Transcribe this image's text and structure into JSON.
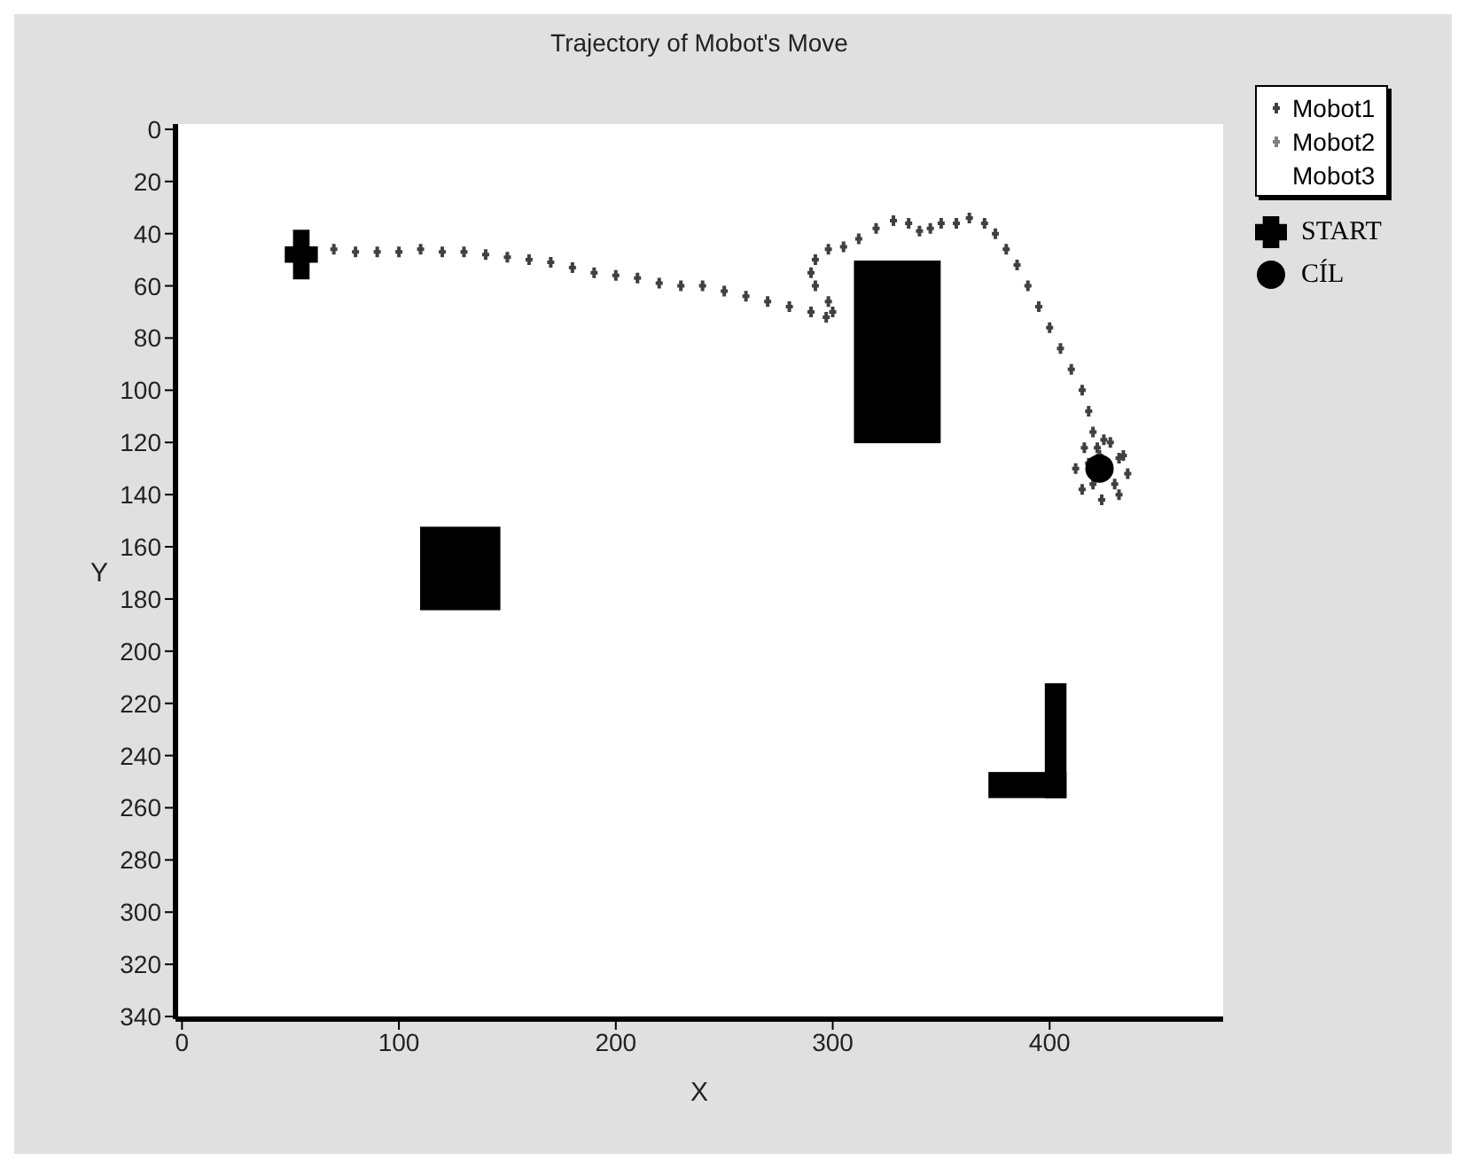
{
  "chart_data": {
    "type": "scatter",
    "title": "Trajectory of Mobot's Move",
    "xlabel": "X",
    "ylabel": "Y",
    "xlim": [
      -3,
      480
    ],
    "xticks": [
      0,
      100,
      200,
      300,
      400
    ],
    "ylim": [
      341,
      -2
    ],
    "yticks": [
      0,
      20,
      40,
      60,
      80,
      100,
      120,
      140,
      160,
      180,
      200,
      220,
      240,
      260,
      280,
      300,
      320,
      340
    ],
    "grid": false,
    "legend": "right",
    "series": [
      {
        "name": "Mobot1",
        "color": "#404040",
        "marker": "cross",
        "x": [
          70,
          80,
          90,
          100,
          110,
          120,
          130,
          140,
          150,
          160,
          170,
          180,
          190,
          200,
          210,
          220,
          230,
          240,
          250,
          260,
          270,
          280,
          290,
          297,
          300,
          298,
          292,
          290,
          292,
          298,
          305,
          312,
          320,
          328,
          335,
          340,
          345,
          350,
          357,
          363,
          370,
          375,
          380,
          385,
          390,
          395,
          400,
          405,
          410,
          415,
          418,
          420,
          422,
          428,
          434,
          436,
          432,
          424,
          415,
          412,
          416,
          425,
          432,
          430,
          420,
          418,
          423
        ],
        "values": [
          46,
          47,
          47,
          47,
          46,
          47,
          47,
          48,
          49,
          50,
          51,
          53,
          55,
          56,
          57,
          59,
          60,
          60,
          62,
          64,
          66,
          68,
          70,
          72,
          70,
          66,
          60,
          55,
          50,
          46,
          45,
          42,
          38,
          35,
          36,
          39,
          38,
          36,
          36,
          34,
          36,
          40,
          46,
          52,
          60,
          68,
          76,
          84,
          92,
          100,
          108,
          116,
          122,
          120,
          125,
          132,
          140,
          142,
          138,
          130,
          122,
          119,
          126,
          136,
          136,
          128,
          125
        ]
      },
      {
        "name": "Mobot2",
        "color": "#808080",
        "marker": "cross"
      },
      {
        "name": "Mobot3",
        "marker": "none"
      },
      {
        "name": "START",
        "color": "#000000",
        "marker": "cross",
        "x": [
          55
        ],
        "values": [
          48
        ]
      },
      {
        "name": "CÍL",
        "color": "#000000",
        "marker": "circle",
        "x": [
          423
        ],
        "values": [
          130
        ]
      }
    ]
  }
}
